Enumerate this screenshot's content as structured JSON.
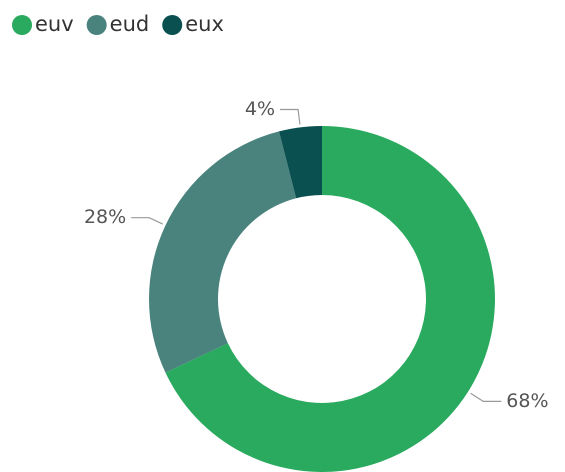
{
  "chart_data": {
    "type": "donut",
    "series": [
      {
        "name": "euv",
        "color": "#2aaa5e",
        "values": [
          68
        ],
        "value_labels": [
          "68%"
        ]
      },
      {
        "name": "eud",
        "color": "#4a837e",
        "values": [
          28
        ],
        "value_labels": [
          "28%"
        ]
      },
      {
        "name": "eux",
        "color": "#0b5051",
        "values": [
          4
        ],
        "value_labels": [
          "4%"
        ]
      }
    ],
    "legend": "top-left"
  }
}
